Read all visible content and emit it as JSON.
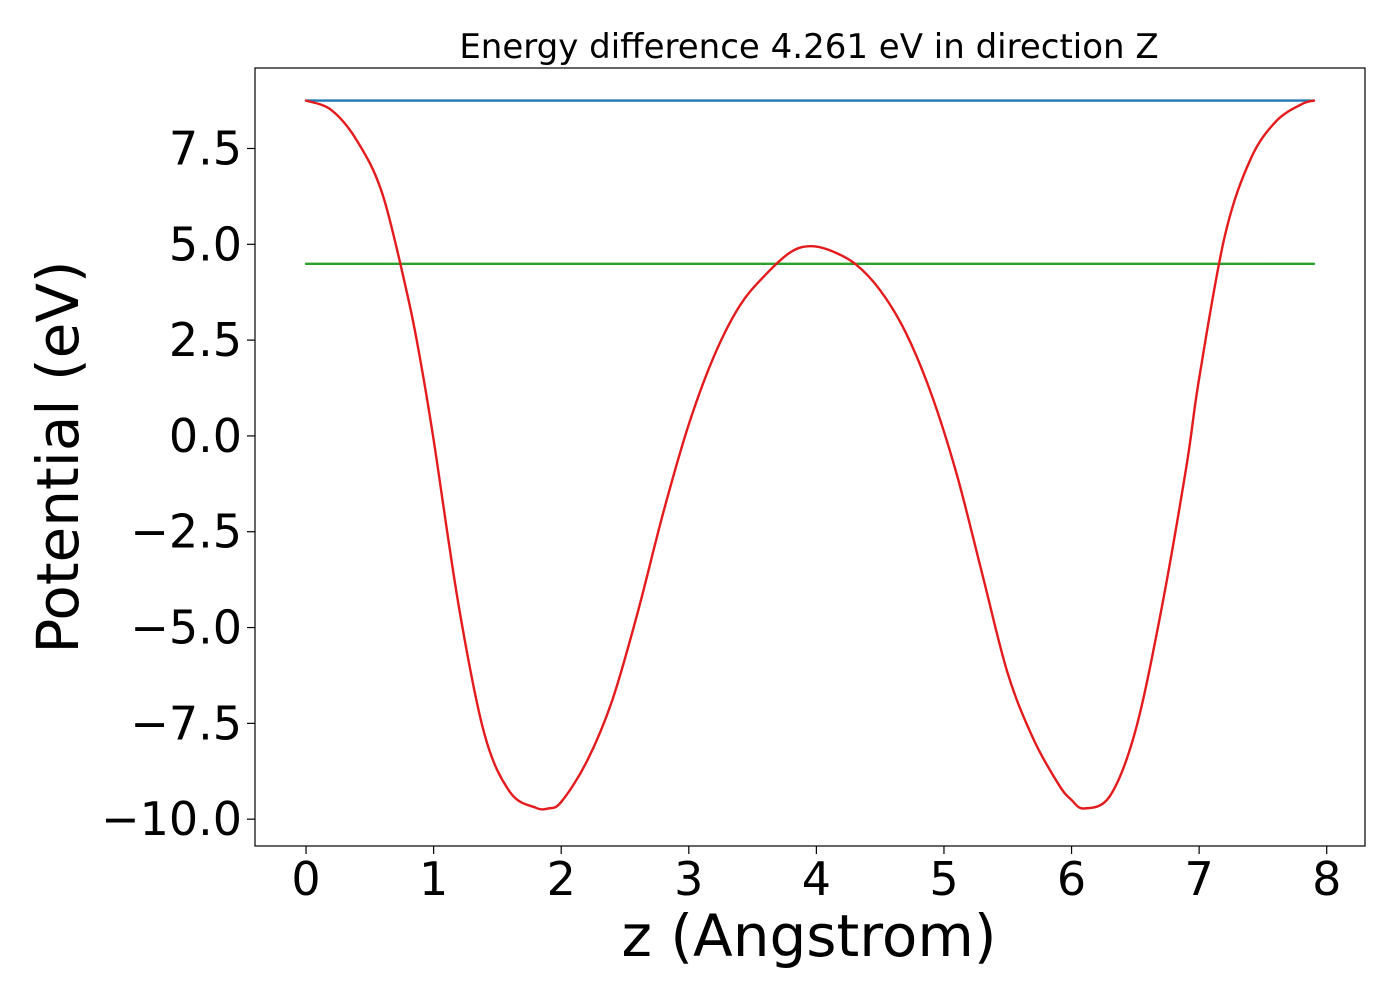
{
  "chart_data": {
    "type": "line",
    "title": "Energy difference 4.261 eV in direction Z",
    "xlabel": "z (Angstrom)",
    "ylabel": "Potential (eV)",
    "xlim": [
      -0.4,
      8.3
    ],
    "ylim": [
      -10.7,
      9.6
    ],
    "xticks": [
      0,
      1,
      2,
      3,
      4,
      5,
      6,
      7,
      8
    ],
    "xtick_labels": [
      "0",
      "1",
      "2",
      "3",
      "4",
      "5",
      "6",
      "7",
      "8"
    ],
    "yticks": [
      -10,
      -7.5,
      -5,
      -2.5,
      0,
      2.5,
      5,
      7.5
    ],
    "ytick_labels": [
      "−10.0",
      "−7.5",
      "−5.0",
      "−2.5",
      "0.0",
      "2.5",
      "5.0",
      "7.5"
    ],
    "grid": false,
    "series": [
      {
        "color": "#1f77b4",
        "x": [
          0,
          7.9
        ],
        "y": [
          8.75,
          8.75
        ]
      },
      {
        "color": "#2ca02c",
        "x": [
          0,
          7.9
        ],
        "y": [
          4.49,
          4.49
        ]
      },
      {
        "color": "#e41a1c",
        "x": [
          0,
          0.2,
          0.4,
          0.6,
          0.8,
          0.9,
          1.0,
          1.2,
          1.4,
          1.6,
          1.8,
          1.9,
          2.0,
          2.2,
          2.4,
          2.6,
          2.8,
          3.0,
          3.2,
          3.4,
          3.6,
          3.8,
          3.95,
          4.1,
          4.3,
          4.5,
          4.7,
          4.9,
          5.1,
          5.3,
          5.5,
          5.7,
          5.9,
          6.0,
          6.1,
          6.3,
          6.5,
          6.7,
          6.9,
          7.0,
          7.2,
          7.4,
          7.6,
          7.8,
          7.9
        ],
        "y": [
          8.75,
          8.5,
          7.7,
          6.3,
          3.6,
          1.9,
          -0.1,
          -4.5,
          -7.8,
          -9.3,
          -9.7,
          -9.72,
          -9.55,
          -8.5,
          -6.9,
          -4.6,
          -2.0,
          0.3,
          2.1,
          3.4,
          4.2,
          4.8,
          4.95,
          4.85,
          4.5,
          3.8,
          2.7,
          1.1,
          -1.0,
          -3.6,
          -6.2,
          -7.9,
          -9.1,
          -9.5,
          -9.72,
          -9.4,
          -7.7,
          -4.6,
          -0.8,
          1.5,
          5.2,
          7.2,
          8.2,
          8.65,
          8.75
        ]
      }
    ]
  }
}
